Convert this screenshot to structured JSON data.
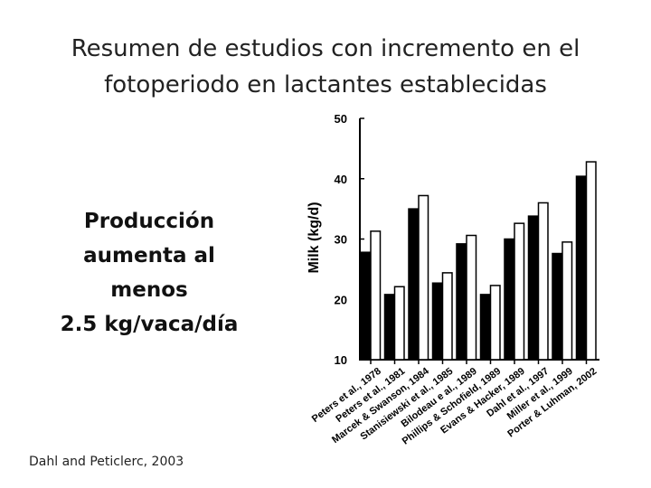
{
  "slide": {
    "title_lines": [
      "Resumen de estudios con incremento en el",
      "fotoperiodo en lactantes establecidas"
    ],
    "claim_lines": [
      "Producción",
      "aumenta al",
      "menos",
      "2.5 kg/vaca/día"
    ],
    "citation": "Dahl and Peticlerc, 2003"
  },
  "chart_data": {
    "type": "bar",
    "title": "",
    "xlabel": "",
    "ylabel": "Milk (kg/d)",
    "ylim": [
      10,
      50
    ],
    "yticks": [
      10,
      20,
      30,
      40,
      50
    ],
    "grid": false,
    "categories": [
      "Peters et al., 1978",
      "Peters et al., 1981",
      "Marcek & Swanson, 1984",
      "Stanisiewski et al., 1985",
      "Bilodeau e al., 1989",
      "Phillips & Schofield, 1989",
      "Evans & Hacker, 1989",
      "Dahl et al., 1997",
      "Miller et al., 1999",
      "Porter & Luhman, 2002"
    ],
    "series": [
      {
        "values": [
          27.8,
          20.8,
          35.0,
          22.7,
          29.2,
          20.8,
          30.0,
          33.8,
          27.6,
          40.4
        ],
        "color": "#000000"
      },
      {
        "values": [
          31.3,
          22.1,
          37.2,
          24.4,
          30.6,
          22.3,
          32.6,
          36.0,
          29.5,
          42.8
        ],
        "color": "#ffffff"
      }
    ]
  }
}
